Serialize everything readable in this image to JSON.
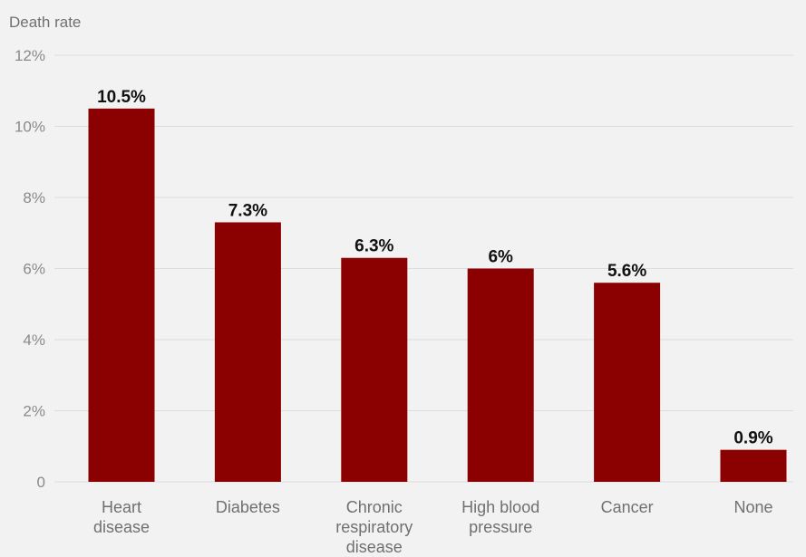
{
  "chart_data": {
    "type": "bar",
    "title": "",
    "ylabel": "Death rate",
    "xlabel": "",
    "categories": [
      [
        "Heart",
        "disease"
      ],
      [
        "Diabetes"
      ],
      [
        "Chronic",
        "respiratory",
        "disease"
      ],
      [
        "High blood",
        "pressure"
      ],
      [
        "Cancer"
      ],
      [
        "None"
      ]
    ],
    "values": [
      10.5,
      7.3,
      6.3,
      6.0,
      5.6,
      0.9
    ],
    "value_labels": [
      "10.5%",
      "7.3%",
      "6.3%",
      "6%",
      "5.6%",
      "0.9%"
    ],
    "ylim": [
      0,
      12
    ],
    "yticks": [
      0,
      2,
      4,
      6,
      8,
      10,
      12
    ],
    "ytick_labels": [
      "0",
      "2%",
      "4%",
      "6%",
      "8%",
      "10%",
      "12%"
    ],
    "grid": true,
    "legend": "none",
    "bar_color": "#8b0000",
    "grid_color": "#dcdcdc"
  }
}
